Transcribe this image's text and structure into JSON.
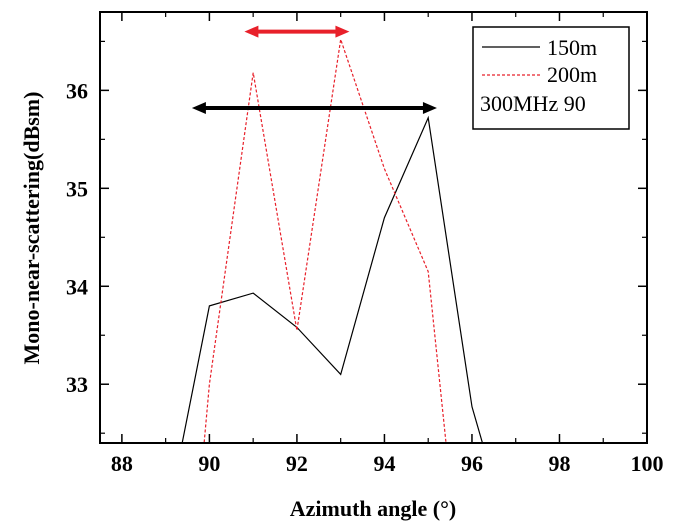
{
  "chart_data": {
    "type": "line",
    "title": "",
    "xlabel": "Azimuth angle (°)",
    "ylabel": "Mono-near-scattering(dBsm)",
    "xlim": [
      87.5,
      100
    ],
    "ylim": [
      32.4,
      36.8
    ],
    "xticks": [
      88,
      90,
      92,
      94,
      96,
      98,
      100
    ],
    "yticks": [
      33,
      34,
      35,
      36
    ],
    "grid": false,
    "legend_position": "top-right",
    "series": [
      {
        "name": "150m",
        "color": "#000000",
        "style": "solid",
        "x": [
          89.2,
          90,
          91,
          92,
          93,
          94,
          95,
          96,
          96.5
        ],
        "y": [
          32.0,
          33.8,
          33.93,
          33.58,
          33.1,
          34.7,
          35.72,
          32.77,
          32.0
        ]
      },
      {
        "name": "200m",
        "color": "#e8202a",
        "style": "dashed",
        "x": [
          89.8,
          90,
          91,
          92,
          93,
          94,
          95,
          95.5
        ],
        "y": [
          32.0,
          33.0,
          36.18,
          33.55,
          36.52,
          35.2,
          34.15,
          32.0
        ]
      }
    ],
    "legend_extra": "300MHz 90",
    "annotations": [
      {
        "name": "red-double-arrow",
        "color": "#e8202a",
        "x_from": 90.8,
        "x_to": 93.2,
        "y": 36.6
      },
      {
        "name": "black-double-arrow",
        "color": "#000000",
        "x_from": 89.6,
        "x_to": 95.2,
        "y": 35.82
      }
    ]
  }
}
